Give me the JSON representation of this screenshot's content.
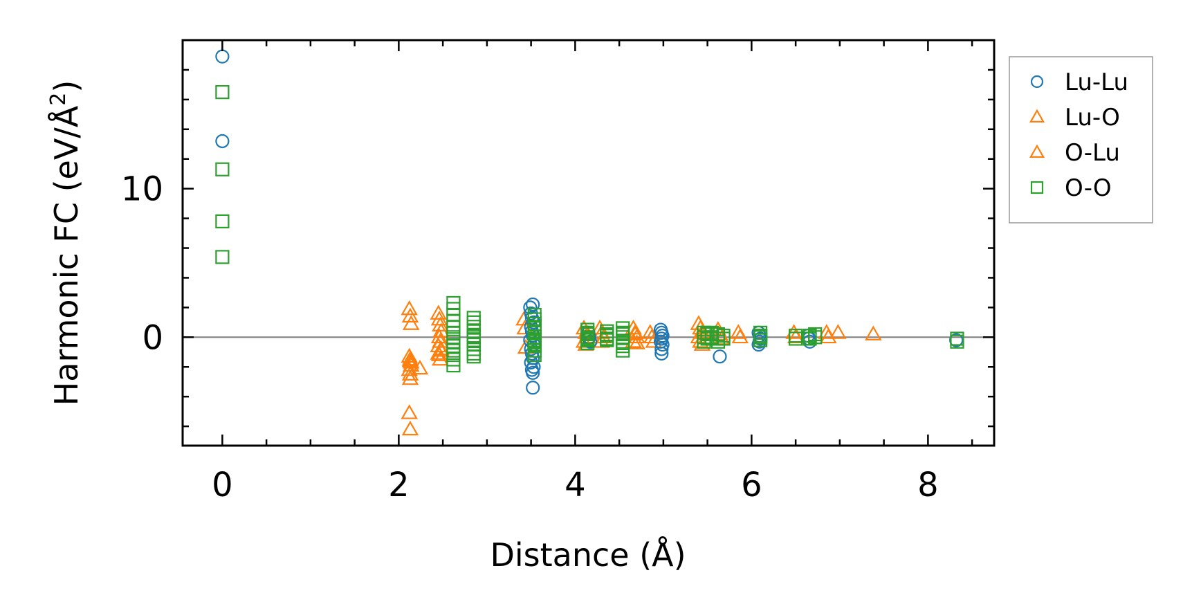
{
  "chart_data": {
    "type": "scatter",
    "title": "",
    "xlabel": "Distance (Å)",
    "ylabel_main": "Harmonic FC (eV/Å",
    "ylabel_sup": "2",
    "ylabel_close": ")",
    "xlim": [
      -0.45,
      8.75
    ],
    "ylim": [
      -7.3,
      20.0
    ],
    "xticks": [
      0,
      2,
      4,
      6,
      8
    ],
    "xtick_labels": [
      "0",
      "2",
      "4",
      "6",
      "8"
    ],
    "yticks": [
      0,
      10
    ],
    "ytick_labels": [
      "0",
      "10"
    ],
    "grid": false,
    "zero_line": true,
    "legend": {
      "placement": "outside-right-top"
    },
    "series": [
      {
        "name": "Lu-Lu",
        "marker": "circle",
        "color": "#1f77b4",
        "x": [
          0,
          0,
          3.49,
          3.5,
          3.51,
          3.52,
          3.53,
          3.5,
          3.51,
          3.52,
          3.49,
          3.53,
          3.5,
          3.51,
          3.52,
          3.5,
          3.53,
          3.51,
          3.52,
          3.52,
          4.15,
          4.16,
          4.17,
          4.97,
          4.98,
          4.99,
          4.98,
          4.97,
          4.99,
          4.98,
          4.98,
          5.64,
          6.08,
          6.09,
          6.1,
          6.09,
          6.08,
          6.64,
          6.65,
          6.66,
          8.32
        ],
        "y": [
          18.9,
          13.2,
          2.0,
          1.6,
          1.3,
          2.2,
          1.0,
          0.7,
          0.4,
          0.1,
          -0.2,
          -0.5,
          -0.8,
          -1.1,
          -1.4,
          -1.7,
          -2.0,
          -2.2,
          -2.4,
          -3.4,
          0.3,
          0.0,
          -0.3,
          0.5,
          0.3,
          0.1,
          -0.1,
          -0.3,
          -0.5,
          -0.8,
          -1.1,
          -1.3,
          0.3,
          0.1,
          -0.1,
          -0.3,
          -0.5,
          0.1,
          -0.1,
          -0.3,
          -0.2
        ]
      },
      {
        "name": "Lu-O",
        "marker": "triangle",
        "color": "#ff7f0e",
        "x": [
          2.12,
          2.13,
          2.14,
          2.12,
          2.13,
          2.14,
          2.12,
          2.13,
          2.14,
          2.13,
          2.12,
          2.13,
          2.13,
          2.24,
          2.45,
          2.46,
          2.47,
          2.48,
          2.46,
          2.47,
          2.45,
          2.48,
          2.46,
          2.47,
          2.45,
          2.48,
          3.42,
          3.43,
          3.44,
          4.1,
          4.12,
          4.14,
          4.1,
          4.12,
          4.14,
          4.28,
          4.3,
          4.32,
          4.3,
          4.66,
          4.68,
          4.7,
          4.66,
          4.68,
          4.7,
          4.85,
          4.87,
          4.89,
          5.4,
          5.42,
          5.44,
          5.4,
          5.42,
          5.44,
          5.62,
          5.64,
          5.66,
          5.85,
          5.87,
          6.48,
          6.5,
          6.85,
          6.87,
          6.98,
          7.38
        ],
        "y": [
          1.9,
          1.4,
          0.9,
          -1.3,
          -1.6,
          -1.9,
          -2.2,
          -2.5,
          -1.7,
          -2.8,
          -5.1,
          -6.2,
          -1.5,
          -2.1,
          1.6,
          1.2,
          0.8,
          0.4,
          0.0,
          -0.3,
          -0.6,
          -0.9,
          -1.2,
          -1.5,
          -1.1,
          -0.8,
          1.2,
          0.6,
          -0.7,
          0.6,
          0.3,
          0.0,
          -0.3,
          -0.5,
          0.2,
          0.6,
          0.3,
          0.0,
          -0.3,
          0.6,
          0.3,
          0.0,
          -0.3,
          0.2,
          -0.4,
          0.3,
          0.0,
          -0.3,
          0.9,
          0.6,
          0.3,
          0.0,
          -0.3,
          -0.5,
          0.5,
          0.2,
          -0.1,
          0.3,
          0.0,
          0.3,
          0.0,
          0.3,
          0.0,
          0.3,
          0.2
        ]
      },
      {
        "name": "O-Lu",
        "marker": "triangle",
        "color": "#ff7f0e",
        "x": [],
        "y": []
      },
      {
        "name": "O-O",
        "marker": "square",
        "color": "#2ca02c",
        "x": [
          0,
          0,
          0,
          0,
          2.62,
          2.62,
          2.62,
          2.62,
          2.62,
          2.62,
          2.62,
          2.62,
          2.62,
          2.62,
          2.62,
          2.62,
          2.62,
          2.85,
          2.85,
          2.85,
          2.85,
          2.85,
          2.85,
          2.85,
          2.85,
          2.85,
          2.85,
          2.85,
          3.54,
          3.54,
          3.54,
          3.54,
          3.54,
          3.54,
          3.54,
          3.54,
          3.54,
          3.54,
          3.54,
          3.54,
          3.54,
          3.54,
          4.14,
          4.14,
          4.14,
          4.14,
          4.14,
          4.14,
          4.14,
          4.36,
          4.36,
          4.36,
          4.36,
          4.36,
          4.54,
          4.54,
          4.54,
          4.54,
          4.54,
          4.54,
          4.54,
          4.54,
          5.46,
          5.46,
          5.46,
          5.5,
          5.5,
          5.55,
          5.55,
          5.62,
          5.62,
          5.62,
          5.68,
          5.68,
          6.1,
          6.1,
          6.1,
          6.1,
          6.5,
          6.5,
          6.66,
          6.66,
          6.72,
          6.72,
          8.33,
          8.33
        ],
        "y": [
          16.5,
          11.3,
          7.8,
          5.4,
          2.3,
          1.9,
          1.5,
          1.1,
          0.7,
          0.3,
          0.0,
          -0.3,
          -0.6,
          -0.9,
          -1.2,
          -1.5,
          -1.9,
          1.3,
          1.0,
          0.7,
          0.4,
          0.1,
          -0.2,
          -0.5,
          -0.8,
          -1.1,
          -1.3,
          0.0,
          1.5,
          1.2,
          0.9,
          0.6,
          0.3,
          0.0,
          -0.3,
          -0.6,
          -0.9,
          -1.2,
          0.7,
          0.4,
          -0.2,
          -0.5,
          0.5,
          0.2,
          -0.1,
          -0.4,
          0.3,
          0.0,
          -0.2,
          0.4,
          0.1,
          -0.2,
          0.2,
          -0.1,
          0.6,
          0.3,
          0.0,
          -0.3,
          -0.6,
          -0.9,
          0.2,
          -0.4,
          0.3,
          0.0,
          -0.3,
          0.2,
          -0.1,
          0.3,
          0.0,
          0.2,
          -0.1,
          -0.3,
          0.1,
          -0.1,
          0.3,
          0.0,
          -0.2,
          0.1,
          0.1,
          -0.1,
          0.1,
          -0.1,
          0.2,
          0.0,
          -0.1,
          -0.3
        ]
      }
    ]
  }
}
